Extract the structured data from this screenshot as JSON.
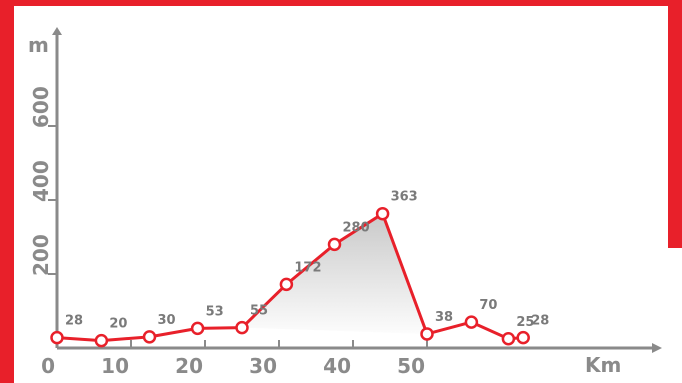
{
  "colors": {
    "frame": "#e8202a",
    "axis": "#8a8a8a",
    "line": "#e8202a",
    "marker_fill": "#ffffff",
    "area_fill": "#c9c9c9",
    "text": "#8a8a8a"
  },
  "chart_data": {
    "type": "area",
    "x_unit": "Km",
    "y_unit": "m",
    "x_ticks": [
      0,
      10,
      20,
      30,
      40,
      50
    ],
    "y_ticks": [
      200,
      400,
      600
    ],
    "xlim": [
      0,
      58
    ],
    "ylim": [
      0,
      780
    ],
    "series": [
      {
        "x": [
          0,
          6,
          12.5,
          19,
          25,
          31,
          37.5,
          44,
          50,
          56,
          61,
          63
        ],
        "values": [
          28,
          20,
          30,
          53,
          55,
          172,
          280,
          363,
          38,
          70,
          25,
          28
        ],
        "labels": [
          "28",
          "20",
          "30",
          "53",
          "55",
          "172",
          "280",
          "363",
          "38",
          "70",
          "25",
          "28"
        ]
      }
    ]
  }
}
